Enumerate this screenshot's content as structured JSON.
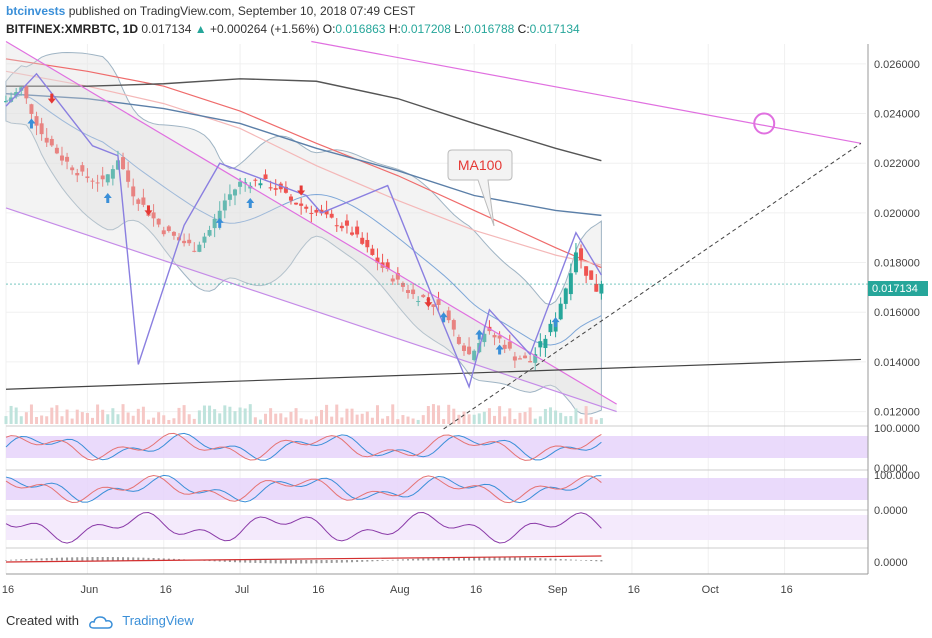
{
  "header": {
    "author": "btcinvests",
    "published": "published on TradingView.com, September 10, 2018 07:49 CEST",
    "symbol": "BITFINEX:XMRBTC, 1D",
    "last": "0.017134",
    "change": "+0.000264 (+1.56%)",
    "o_label": "O:",
    "o_value": "0.016863",
    "h_label": "H:",
    "h_value": "0.017208",
    "l_label": "L:",
    "l_value": "0.016788",
    "c_label": "C:",
    "c_value": "0.017134"
  },
  "annotation": {
    "text": "MA100"
  },
  "footer": {
    "created_with": "Created with",
    "brand": "TradingView"
  },
  "colors": {
    "up": "#26a69a",
    "down": "#ef5350",
    "accent": "#3a8fd8",
    "pattern": "#8a7fe0",
    "channel": "#e070e0"
  },
  "chart_data": {
    "type": "candlestick",
    "symbol": "BITFINEX:XMRBTC",
    "interval": "1D",
    "x_tick_labels": [
      "16",
      "Jun",
      "16",
      "Jul",
      "16",
      "Aug",
      "16",
      "Sep",
      "16",
      "Oct",
      "16"
    ],
    "y_tick_labels": [
      "0.026000",
      "0.024000",
      "0.022000",
      "0.020000",
      "0.018000",
      "0.016000",
      "0.014000",
      "0.012000"
    ],
    "ylim": [
      0.0115,
      0.0268
    ],
    "last_price_label": "0.017134",
    "last_price": 0.017134,
    "price_path": [
      [
        "2018-05-16",
        0.0245
      ],
      [
        "2018-05-19",
        0.025
      ],
      [
        "2018-05-23",
        0.0232
      ],
      [
        "2018-05-27",
        0.0222
      ],
      [
        "2018-05-31",
        0.0215
      ],
      [
        "2018-06-04",
        0.0212
      ],
      [
        "2018-06-07",
        0.0222
      ],
      [
        "2018-06-10",
        0.0208
      ],
      [
        "2018-06-13",
        0.02
      ],
      [
        "2018-06-16",
        0.0193
      ],
      [
        "2018-06-19",
        0.0189
      ],
      [
        "2018-06-22",
        0.0186
      ],
      [
        "2018-06-25",
        0.0193
      ],
      [
        "2018-06-28",
        0.0205
      ],
      [
        "2018-07-01",
        0.0212
      ],
      [
        "2018-07-05",
        0.0213
      ],
      [
        "2018-07-08",
        0.021
      ],
      [
        "2018-07-11",
        0.0205
      ],
      [
        "2018-07-14",
        0.0202
      ],
      [
        "2018-07-17",
        0.0199
      ],
      [
        "2018-07-20",
        0.0196
      ],
      [
        "2018-07-23",
        0.0192
      ],
      [
        "2018-07-26",
        0.0185
      ],
      [
        "2018-07-29",
        0.0178
      ],
      [
        "2018-08-01",
        0.0172
      ],
      [
        "2018-08-04",
        0.0167
      ],
      [
        "2018-08-07",
        0.0165
      ],
      [
        "2018-08-10",
        0.016
      ],
      [
        "2018-08-13",
        0.0149
      ],
      [
        "2018-08-15",
        0.0143
      ],
      [
        "2018-08-18",
        0.0152
      ],
      [
        "2018-08-21",
        0.0149
      ],
      [
        "2018-08-24",
        0.0142
      ],
      [
        "2018-08-27",
        0.014
      ],
      [
        "2018-08-30",
        0.015
      ],
      [
        "2018-09-01",
        0.0158
      ],
      [
        "2018-09-03",
        0.017
      ],
      [
        "2018-09-05",
        0.0185
      ],
      [
        "2018-09-07",
        0.0176
      ],
      [
        "2018-09-09",
        0.0169
      ],
      [
        "2018-09-10",
        0.017134
      ]
    ],
    "annotations": [
      "MA100"
    ],
    "indicator_panels": [
      {
        "name": "oscillator-1",
        "tick_labels": [
          "100.0000",
          "0.0000"
        ]
      },
      {
        "name": "oscillator-2",
        "tick_labels": [
          "100.0000",
          "0.0000"
        ]
      },
      {
        "name": "oscillator-3",
        "tick_labels": []
      },
      {
        "name": "oscillator-4",
        "tick_labels": [
          "0.0000"
        ]
      }
    ],
    "grid": true
  }
}
